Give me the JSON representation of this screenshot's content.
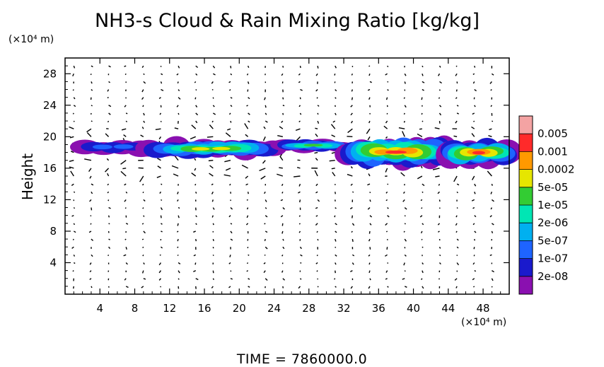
{
  "chart_data": {
    "type": "heatmap",
    "title": "NH3-s Cloud & Rain Mixing Ratio [kg/kg]",
    "ylabel": "Height",
    "xunit": "(×10⁴ m)",
    "yunit": "(×10⁴ m)",
    "time_label": "TIME = 7860000.0",
    "xlim": [
      0,
      51
    ],
    "ylim": [
      0,
      30
    ],
    "xticks": [
      4,
      8,
      12,
      16,
      20,
      24,
      28,
      32,
      36,
      40,
      44,
      48
    ],
    "yticks": [
      4,
      8,
      12,
      16,
      20,
      24,
      28
    ],
    "colorbar": {
      "labels": [
        "0.005",
        "0.001",
        "0.0002",
        "5e-05",
        "1e-05",
        "2e-06",
        "5e-07",
        "1e-07",
        "2e-08"
      ],
      "colors": [
        "#f4a3a3",
        "#ff2a2a",
        "#ff9900",
        "#e6e600",
        "#33cc33",
        "#00e6b4",
        "#00b0f0",
        "#1e64ff",
        "#1a1acc",
        "#8a10b0"
      ]
    },
    "cloud_layers": [
      {
        "x_range": [
          2.0,
          9.0
        ],
        "y_range": [
          17.6,
          19.8
        ],
        "max_level": "1e-07"
      },
      {
        "x_range": [
          9.0,
          24.5
        ],
        "y_range": [
          17.2,
          19.8
        ],
        "max_level": "5e-05"
      },
      {
        "x_range": [
          25.0,
          32.0
        ],
        "y_range": [
          18.0,
          19.8
        ],
        "max_level": "1e-05"
      },
      {
        "x_range": [
          32.0,
          44.0
        ],
        "y_range": [
          16.0,
          20.2
        ],
        "max_level": "0.001"
      },
      {
        "x_range": [
          44.0,
          51.0
        ],
        "y_range": [
          16.0,
          20.0
        ],
        "max_level": "0.001"
      }
    ]
  }
}
